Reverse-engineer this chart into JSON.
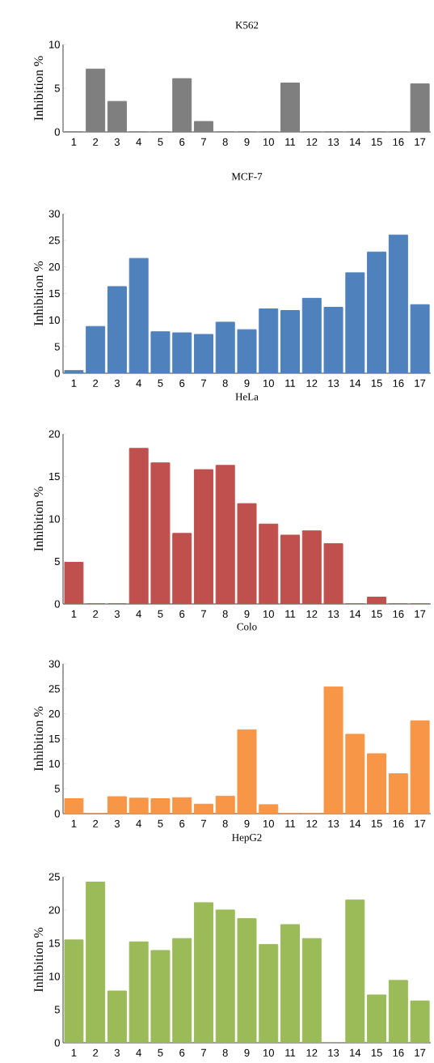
{
  "chart_data": [
    {
      "type": "bar",
      "title": "K562",
      "ylabel": "Inhibition %",
      "categories": [
        "1",
        "2",
        "3",
        "4",
        "5",
        "6",
        "7",
        "8",
        "9",
        "10",
        "11",
        "12",
        "13",
        "14",
        "15",
        "16",
        "17"
      ],
      "values": [
        0,
        7.2,
        3.5,
        0,
        0,
        6.1,
        1.2,
        0,
        0,
        0,
        5.6,
        0,
        0,
        0,
        0,
        0,
        5.5
      ],
      "color": "#7f7f7f",
      "ylim": [
        0,
        10
      ],
      "yticks": [
        0,
        5,
        10
      ]
    },
    {
      "type": "bar",
      "title": "MCF-7",
      "ylabel": "Inhibition %",
      "categories": [
        "1",
        "2",
        "3",
        "4",
        "5",
        "6",
        "7",
        "8",
        "9",
        "10",
        "11",
        "12",
        "13",
        "14",
        "15",
        "16",
        "17"
      ],
      "values": [
        0.5,
        8.8,
        16.3,
        21.6,
        7.8,
        7.6,
        7.3,
        9.6,
        8.2,
        12.1,
        11.8,
        14.1,
        12.4,
        18.9,
        22.8,
        26,
        12.9
      ],
      "color": "#4f81bd",
      "ylim": [
        0,
        30
      ],
      "yticks": [
        0,
        5,
        10,
        15,
        20,
        25,
        30
      ]
    },
    {
      "type": "bar",
      "title": "HeLa",
      "ylabel": "Inhibition %",
      "categories": [
        "1",
        "2",
        "3",
        "4",
        "5",
        "6",
        "7",
        "8",
        "9",
        "10",
        "11",
        "12",
        "13",
        "14",
        "15",
        "16",
        "17"
      ],
      "values": [
        4.9,
        0,
        0,
        18.3,
        16.6,
        8.3,
        15.8,
        16.3,
        11.8,
        9.4,
        8.1,
        8.6,
        7.1,
        0,
        0.8,
        0,
        0
      ],
      "color": "#c0504d",
      "ylim": [
        0,
        20
      ],
      "yticks": [
        0,
        5,
        10,
        15,
        20
      ]
    },
    {
      "type": "bar",
      "title": "Colo",
      "ylabel": "Inhibition %",
      "categories": [
        "1",
        "2",
        "3",
        "4",
        "5",
        "6",
        "7",
        "8",
        "9",
        "10",
        "11",
        "12",
        "13",
        "14",
        "15",
        "16",
        "17"
      ],
      "values": [
        3,
        0,
        3.4,
        3.1,
        3,
        3.2,
        1.9,
        3.5,
        16.8,
        1.8,
        0,
        0,
        25.4,
        15.9,
        12,
        8,
        18.6
      ],
      "color": "#f79646",
      "ylim": [
        0,
        30
      ],
      "yticks": [
        0,
        5,
        10,
        15,
        20,
        25,
        30
      ]
    },
    {
      "type": "bar",
      "title": "HepG2",
      "ylabel": "Inhibition %",
      "categories": [
        "1",
        "2",
        "3",
        "4",
        "5",
        "6",
        "7",
        "8",
        "9",
        "10",
        "11",
        "12",
        "13",
        "14",
        "15",
        "16",
        "17"
      ],
      "values": [
        15.5,
        24.2,
        7.8,
        15.2,
        13.9,
        15.7,
        21.1,
        20,
        18.7,
        14.8,
        17.8,
        15.7,
        0,
        21.5,
        7.2,
        9.4,
        6.3
      ],
      "color": "#9bbb59",
      "ylim": [
        0,
        25
      ],
      "yticks": [
        0,
        5,
        10,
        15,
        20,
        25
      ]
    }
  ]
}
